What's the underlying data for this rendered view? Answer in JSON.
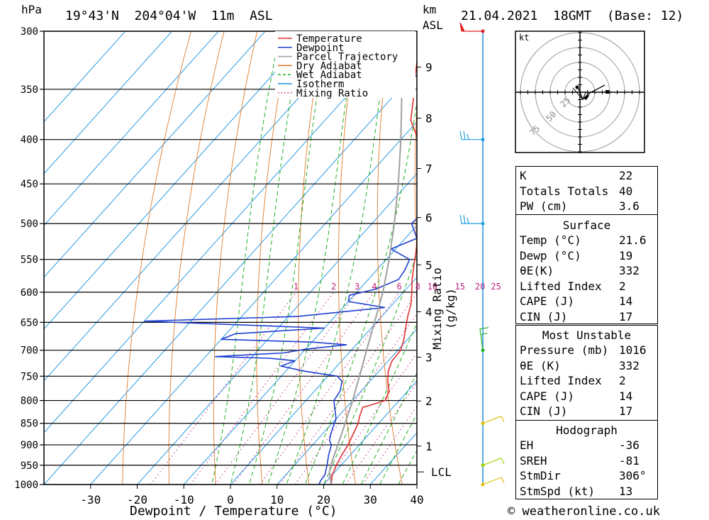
{
  "header": {
    "pressure_unit": "hPa",
    "location": "19°43'N  204°04'W  11m  ASL",
    "height_unit_1": "km",
    "height_unit_2": "ASL",
    "datetime": "21.04.2021  18GMT  (Base: 12)"
  },
  "footer": {
    "copyright": "© weatheronline.co.uk"
  },
  "chart_data": {
    "type": "line",
    "title": "19°43'N 204°04'W 11m ASL",
    "xlabel": "Dewpoint / Temperature (°C)",
    "ylabel": "hPa",
    "ylabel2": "Mixing Ratio (g/kg)",
    "xlim": [
      -40,
      40
    ],
    "ylim": [
      1000,
      300
    ],
    "x_ticks": [
      "-30",
      "-20",
      "-10",
      "0",
      "10",
      "20",
      "30",
      "40"
    ],
    "x_tick_values": [
      -30,
      -20,
      -10,
      0,
      10,
      20,
      30,
      40
    ],
    "pressure_levels": [
      300,
      350,
      400,
      450,
      500,
      550,
      600,
      650,
      700,
      750,
      800,
      850,
      900,
      950,
      1000
    ],
    "km_ticks": [
      {
        "label": "1",
        "p": 903
      },
      {
        "label": "2",
        "p": 801
      },
      {
        "label": "3",
        "p": 713
      },
      {
        "label": "4",
        "p": 632
      },
      {
        "label": "5",
        "p": 558
      },
      {
        "label": "6",
        "p": 492
      },
      {
        "label": "7",
        "p": 432
      },
      {
        "label": "8",
        "p": 378
      },
      {
        "label": "9",
        "p": 330
      }
    ],
    "lcl": {
      "label": "LCL",
      "p": 967
    },
    "mixing_ratio_labels": [
      "1",
      "2",
      "3",
      "4",
      "6",
      "8",
      "10",
      "15",
      "20",
      "25"
    ],
    "mixing_ratio_values": [
      1,
      2,
      3,
      4,
      6,
      8,
      10,
      15,
      20,
      25
    ],
    "legend": [
      {
        "name": "Temperature",
        "color": "#e03030",
        "style": "solid"
      },
      {
        "name": "Dewpoint",
        "color": "#2040d0",
        "style": "solid"
      },
      {
        "name": "Parcel Trajectory",
        "color": "#a0a0a0",
        "style": "solid"
      },
      {
        "name": "Dry Adiabat",
        "color": "#e07020",
        "style": "solid"
      },
      {
        "name": "Wet Adiabat",
        "color": "#20b020",
        "style": "dashed"
      },
      {
        "name": "Isotherm",
        "color": "#2090e0",
        "style": "solid"
      },
      {
        "name": "Mixing Ratio",
        "color": "#c02080",
        "style": "dotted"
      }
    ],
    "series": [
      {
        "name": "Temperature",
        "color": "#e03030",
        "points": [
          [
            1000,
            21.6
          ],
          [
            975,
            20.0
          ],
          [
            950,
            19.0
          ],
          [
            925,
            18.2
          ],
          [
            900,
            17.6
          ],
          [
            850,
            15.6
          ],
          [
            835,
            14.6
          ],
          [
            815,
            13.5
          ],
          [
            800,
            17.0
          ],
          [
            780,
            16.0
          ],
          [
            760,
            13.8
          ],
          [
            740,
            12.0
          ],
          [
            720,
            10.8
          ],
          [
            700,
            10.6
          ],
          [
            680,
            9.2
          ],
          [
            660,
            7.4
          ],
          [
            640,
            5.6
          ],
          [
            620,
            4.0
          ],
          [
            600,
            1.8
          ],
          [
            580,
            -0.6
          ],
          [
            560,
            -2.8
          ],
          [
            540,
            -5.0
          ],
          [
            520,
            -7.4
          ],
          [
            500,
            -9.8
          ],
          [
            480,
            -12.8
          ],
          [
            460,
            -15.6
          ],
          [
            440,
            -18.2
          ],
          [
            425,
            -20.8
          ],
          [
            410,
            -24.0
          ],
          [
            395,
            -27.6
          ],
          [
            380,
            -31.6
          ],
          [
            360,
            -35.0
          ],
          [
            340,
            -38.8
          ],
          [
            320,
            -42.6
          ],
          [
            300,
            -46.4
          ]
        ]
      },
      {
        "name": "Dewpoint",
        "color": "#2040d0",
        "points": [
          [
            1000,
            19.0
          ],
          [
            990,
            18.6
          ],
          [
            975,
            18.4
          ],
          [
            950,
            17.0
          ],
          [
            925,
            15.4
          ],
          [
            900,
            14.0
          ],
          [
            890,
            12.8
          ],
          [
            875,
            11.8
          ],
          [
            860,
            11.0
          ],
          [
            840,
            10.0
          ],
          [
            820,
            8.0
          ],
          [
            800,
            6.0
          ],
          [
            780,
            5.5
          ],
          [
            760,
            4.0
          ],
          [
            750,
            2.0
          ],
          [
            740,
            -6.0
          ],
          [
            730,
            -12.0
          ],
          [
            720,
            -10.0
          ],
          [
            715,
            -16.0
          ],
          [
            712,
            -28.0
          ],
          [
            705,
            -14.0
          ],
          [
            698,
            -10.0
          ],
          [
            690,
            -2.0
          ],
          [
            685,
            -10.0
          ],
          [
            680,
            -30.0
          ],
          [
            670,
            -28.0
          ],
          [
            660,
            -10.0
          ],
          [
            648,
            -50.0
          ],
          [
            640,
            -18.0
          ],
          [
            625,
            -1.0
          ],
          [
            615,
            -10.0
          ],
          [
            605,
            -11.0
          ],
          [
            595,
            -6.5
          ],
          [
            580,
            -3.5
          ],
          [
            565,
            -4.0
          ],
          [
            550,
            -5.0
          ],
          [
            535,
            -11.0
          ],
          [
            520,
            -7.5
          ],
          [
            500,
            -11.5
          ],
          [
            480,
            -11.0
          ],
          [
            460,
            -11.0
          ],
          [
            445,
            -11.0
          ],
          [
            430,
            -15.0
          ],
          [
            410,
            -17.5
          ],
          [
            395,
            -21.0
          ],
          [
            380,
            -25.0
          ],
          [
            365,
            -28.0
          ],
          [
            355,
            -34.0
          ],
          [
            340,
            -38.0
          ],
          [
            325,
            -45.0
          ],
          [
            310,
            -52.0
          ],
          [
            300,
            -56.0
          ]
        ]
      },
      {
        "name": "Parcel Trajectory",
        "color": "#a0a0a0",
        "points": [
          [
            1000,
            21.6
          ],
          [
            967,
            18.8
          ],
          [
            950,
            17.8
          ],
          [
            900,
            15.4
          ],
          [
            850,
            12.8
          ],
          [
            800,
            10.0
          ],
          [
            750,
            6.8
          ],
          [
            700,
            3.3
          ],
          [
            650,
            -0.4
          ],
          [
            600,
            -4.4
          ],
          [
            550,
            -9.4
          ],
          [
            500,
            -15.2
          ],
          [
            450,
            -22.0
          ],
          [
            400,
            -30.0
          ],
          [
            350,
            -39.5
          ],
          [
            300,
            -50.5
          ]
        ]
      }
    ],
    "wind_barbs": [
      {
        "p": 1000,
        "color": "#e0c000"
      },
      {
        "p": 950,
        "color": "#a0d000"
      },
      {
        "p": 850,
        "color": "#e0c000"
      },
      {
        "p": 700,
        "color": "#20b020"
      },
      {
        "p": 500,
        "color": "#20a0e0"
      },
      {
        "p": 400,
        "color": "#20a0e0"
      },
      {
        "p": 300,
        "color": "#e02020"
      }
    ]
  },
  "hodograph": {
    "unit": "kt",
    "ring_labels": [
      "25",
      "50",
      "75"
    ]
  },
  "indices": {
    "rows": [
      {
        "k": "K",
        "v": "22"
      },
      {
        "k": "Totals Totals",
        "v": "40"
      },
      {
        "k": "PW (cm)",
        "v": "3.6"
      }
    ]
  },
  "surface": {
    "title": "Surface",
    "rows": [
      {
        "k": "Temp (°C)",
        "v": "21.6"
      },
      {
        "k": "Dewp (°C)",
        "v": "19"
      },
      {
        "k": "θE(K)",
        "v": "332"
      },
      {
        "k": "Lifted Index",
        "v": "2"
      },
      {
        "k": "CAPE (J)",
        "v": "14"
      },
      {
        "k": "CIN (J)",
        "v": "17"
      }
    ]
  },
  "most_unstable": {
    "title": "Most Unstable",
    "rows": [
      {
        "k": "Pressure (mb)",
        "v": "1016"
      },
      {
        "k": "θE (K)",
        "v": "332"
      },
      {
        "k": "Lifted Index",
        "v": "2"
      },
      {
        "k": "CAPE (J)",
        "v": "14"
      },
      {
        "k": "CIN (J)",
        "v": "17"
      }
    ]
  },
  "hodograph_table": {
    "title": "Hodograph",
    "rows": [
      {
        "k": "EH",
        "v": "-36"
      },
      {
        "k": "SREH",
        "v": "-81"
      },
      {
        "k": "StmDir",
        "v": "306°"
      },
      {
        "k": "StmSpd (kt)",
        "v": "13"
      }
    ]
  }
}
